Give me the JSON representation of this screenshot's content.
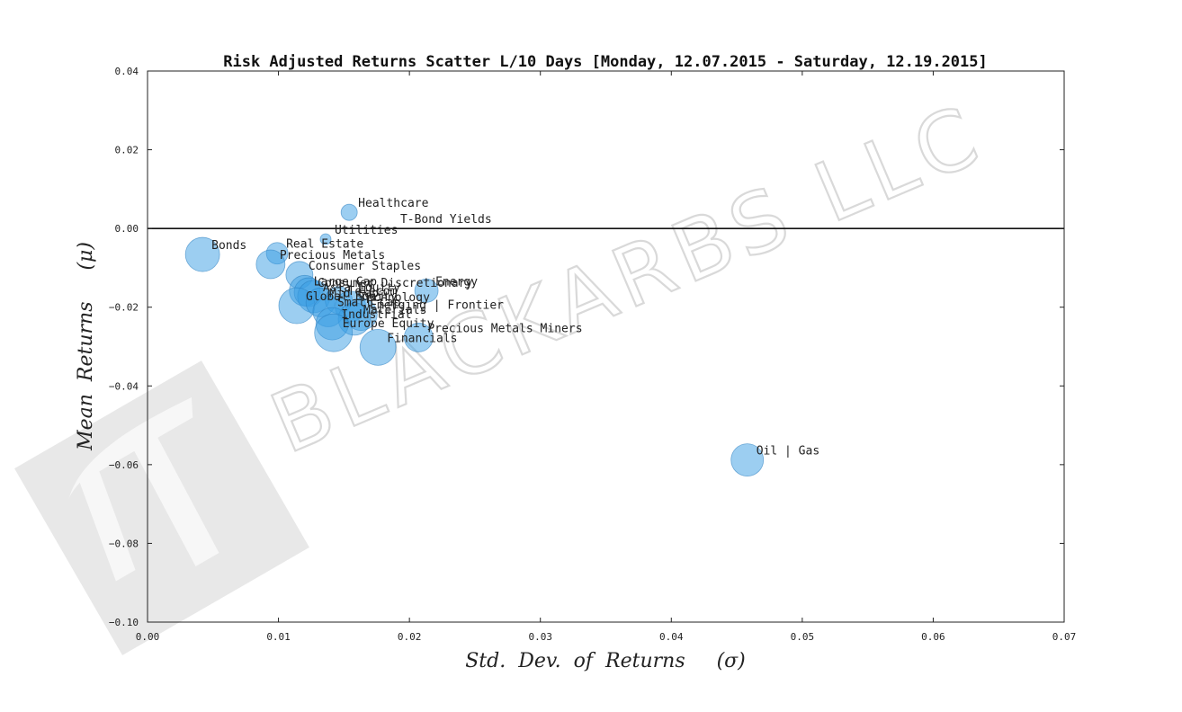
{
  "watermark": {
    "text": "BLACKARBS LLC"
  },
  "chart_data": {
    "type": "scatter",
    "title": "Risk Adjusted Returns Scatter L/10 Days [Monday, 12.07.2015 - Saturday, 12.19.2015]",
    "xlabel": "Std.  Dev.  of  Returns     (σ)",
    "ylabel": "Mean  Returns     (μ)",
    "xlim": [
      0.0,
      0.07
    ],
    "ylim": [
      -0.1,
      0.04
    ],
    "xticks": [
      "0.00",
      "0.01",
      "0.02",
      "0.03",
      "0.04",
      "0.05",
      "0.06",
      "0.07"
    ],
    "yticks": [
      "0.04",
      "0.02",
      "0.00",
      "−0.02",
      "−0.04",
      "−0.06",
      "−0.08",
      "−0.10"
    ],
    "grid": false,
    "zero_line": 0.0,
    "point_color": "#3a9ee4",
    "points": [
      {
        "label": "Healthcare",
        "x": 0.0154,
        "y": 0.0041,
        "size": 9
      },
      {
        "label": "T-Bond Yields",
        "x": 0.0193,
        "y": 0.0,
        "size": 0
      },
      {
        "label": "Utilities",
        "x": 0.0136,
        "y": -0.0027,
        "size": 6
      },
      {
        "label": "Bonds",
        "x": 0.0042,
        "y": -0.0066,
        "size": 19
      },
      {
        "label": "Real Estate",
        "x": 0.0099,
        "y": -0.0063,
        "size": 12
      },
      {
        "label": "Precious Metals",
        "x": 0.0094,
        "y": -0.0091,
        "size": 16
      },
      {
        "label": "Consumer Staples",
        "x": 0.0116,
        "y": -0.0118,
        "size": 15
      },
      {
        "label": "Large Cap",
        "x": 0.012,
        "y": -0.0158,
        "size": 17
      },
      {
        "label": "Consumer Discretionary",
        "x": 0.0123,
        "y": -0.0162,
        "size": 16
      },
      {
        "label": "Energy",
        "x": 0.0213,
        "y": -0.0158,
        "size": 13
      },
      {
        "label": "Asia Equity",
        "x": 0.0127,
        "y": -0.0173,
        "size": 18
      },
      {
        "label": "Global Equity",
        "x": 0.0114,
        "y": -0.0196,
        "size": 20
      },
      {
        "label": "Mid Cap",
        "x": 0.0132,
        "y": -0.0188,
        "size": 16
      },
      {
        "label": "Telecom",
        "x": 0.0146,
        "y": -0.0182,
        "size": 15
      },
      {
        "label": "Technology",
        "x": 0.0155,
        "y": -0.0198,
        "size": 17
      },
      {
        "label": "Small Cap",
        "x": 0.0138,
        "y": -0.0211,
        "size": 17
      },
      {
        "label": "Emerging | Frontier",
        "x": 0.0163,
        "y": -0.0218,
        "size": 18
      },
      {
        "label": "Materials",
        "x": 0.0158,
        "y": -0.023,
        "size": 18
      },
      {
        "label": "Industrial",
        "x": 0.0141,
        "y": -0.0242,
        "size": 18
      },
      {
        "label": "Europe Equity",
        "x": 0.0142,
        "y": -0.0265,
        "size": 21
      },
      {
        "label": "Precious Metals Miners",
        "x": 0.0207,
        "y": -0.0277,
        "size": 16
      },
      {
        "label": "Financials",
        "x": 0.0176,
        "y": -0.0302,
        "size": 20
      },
      {
        "label": "Oil | Gas",
        "x": 0.0458,
        "y": -0.0588,
        "size": 18
      }
    ],
    "label_offsets": {
      "Healthcare": [
        10,
        -6
      ],
      "T-Bond Yields": [
        0,
        -6
      ],
      "Utilities": [
        10,
        -6
      ],
      "Bonds": [
        10,
        -6
      ],
      "Real Estate": [
        10,
        -6
      ],
      "Precious Metals": [
        10,
        -6
      ],
      "Consumer Staples": [
        10,
        -6
      ],
      "Large Cap": [
        10,
        -6
      ],
      "Consumer Discretionary": [
        10,
        -6
      ],
      "Energy": [
        10,
        -6
      ],
      "Asia Equity": [
        10,
        -6
      ],
      "Global Equity": [
        10,
        -6
      ],
      "Mid Cap": [
        10,
        -6
      ],
      "Telecom": [
        10,
        -6
      ],
      "Technology": [
        10,
        -6
      ],
      "Small Cap": [
        10,
        -6
      ],
      "Emerging | Frontier": [
        10,
        -6
      ],
      "Materials": [
        10,
        -6
      ],
      "Industrial": [
        10,
        -6
      ],
      "Europe Equity": [
        10,
        -6
      ],
      "Precious Metals Miners": [
        10,
        -6
      ],
      "Financials": [
        10,
        -6
      ],
      "Oil | Gas": [
        10,
        -6
      ]
    }
  }
}
